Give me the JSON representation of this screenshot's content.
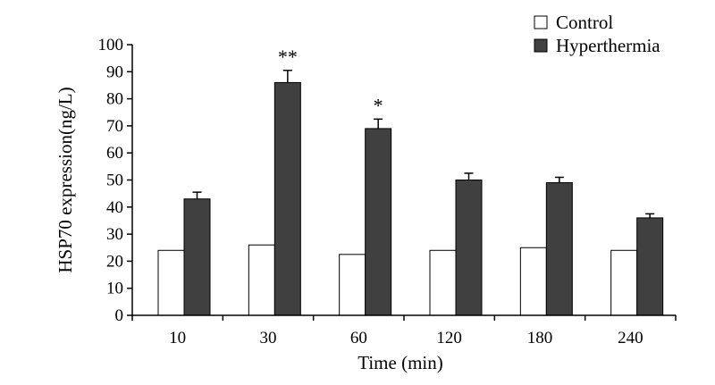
{
  "chart_data": {
    "type": "bar",
    "title": "",
    "xlabel": "Time (min)",
    "ylabel": "HSP70 expression(ng/L)",
    "ylim": [
      0,
      100
    ],
    "yticks": [
      0,
      10,
      20,
      30,
      40,
      50,
      60,
      70,
      80,
      90,
      100
    ],
    "categories": [
      "10",
      "30",
      "60",
      "120",
      "180",
      "240"
    ],
    "series": [
      {
        "name": "Control",
        "color": "#ffffff",
        "values": [
          24,
          26,
          22.5,
          24,
          25,
          24
        ],
        "errors": [
          0,
          0,
          0,
          0,
          0,
          0
        ]
      },
      {
        "name": "Hyperthermia",
        "color": "#404040",
        "values": [
          43,
          86,
          69,
          50,
          49,
          36
        ],
        "errors": [
          2.5,
          4.5,
          3.5,
          2.5,
          2,
          1.5
        ]
      }
    ],
    "annotations": [
      {
        "category": "30",
        "series": "Hyperthermia",
        "text": "**"
      },
      {
        "category": "60",
        "series": "Hyperthermia",
        "text": "*"
      }
    ],
    "legend_position": "top-right",
    "grid": false
  }
}
